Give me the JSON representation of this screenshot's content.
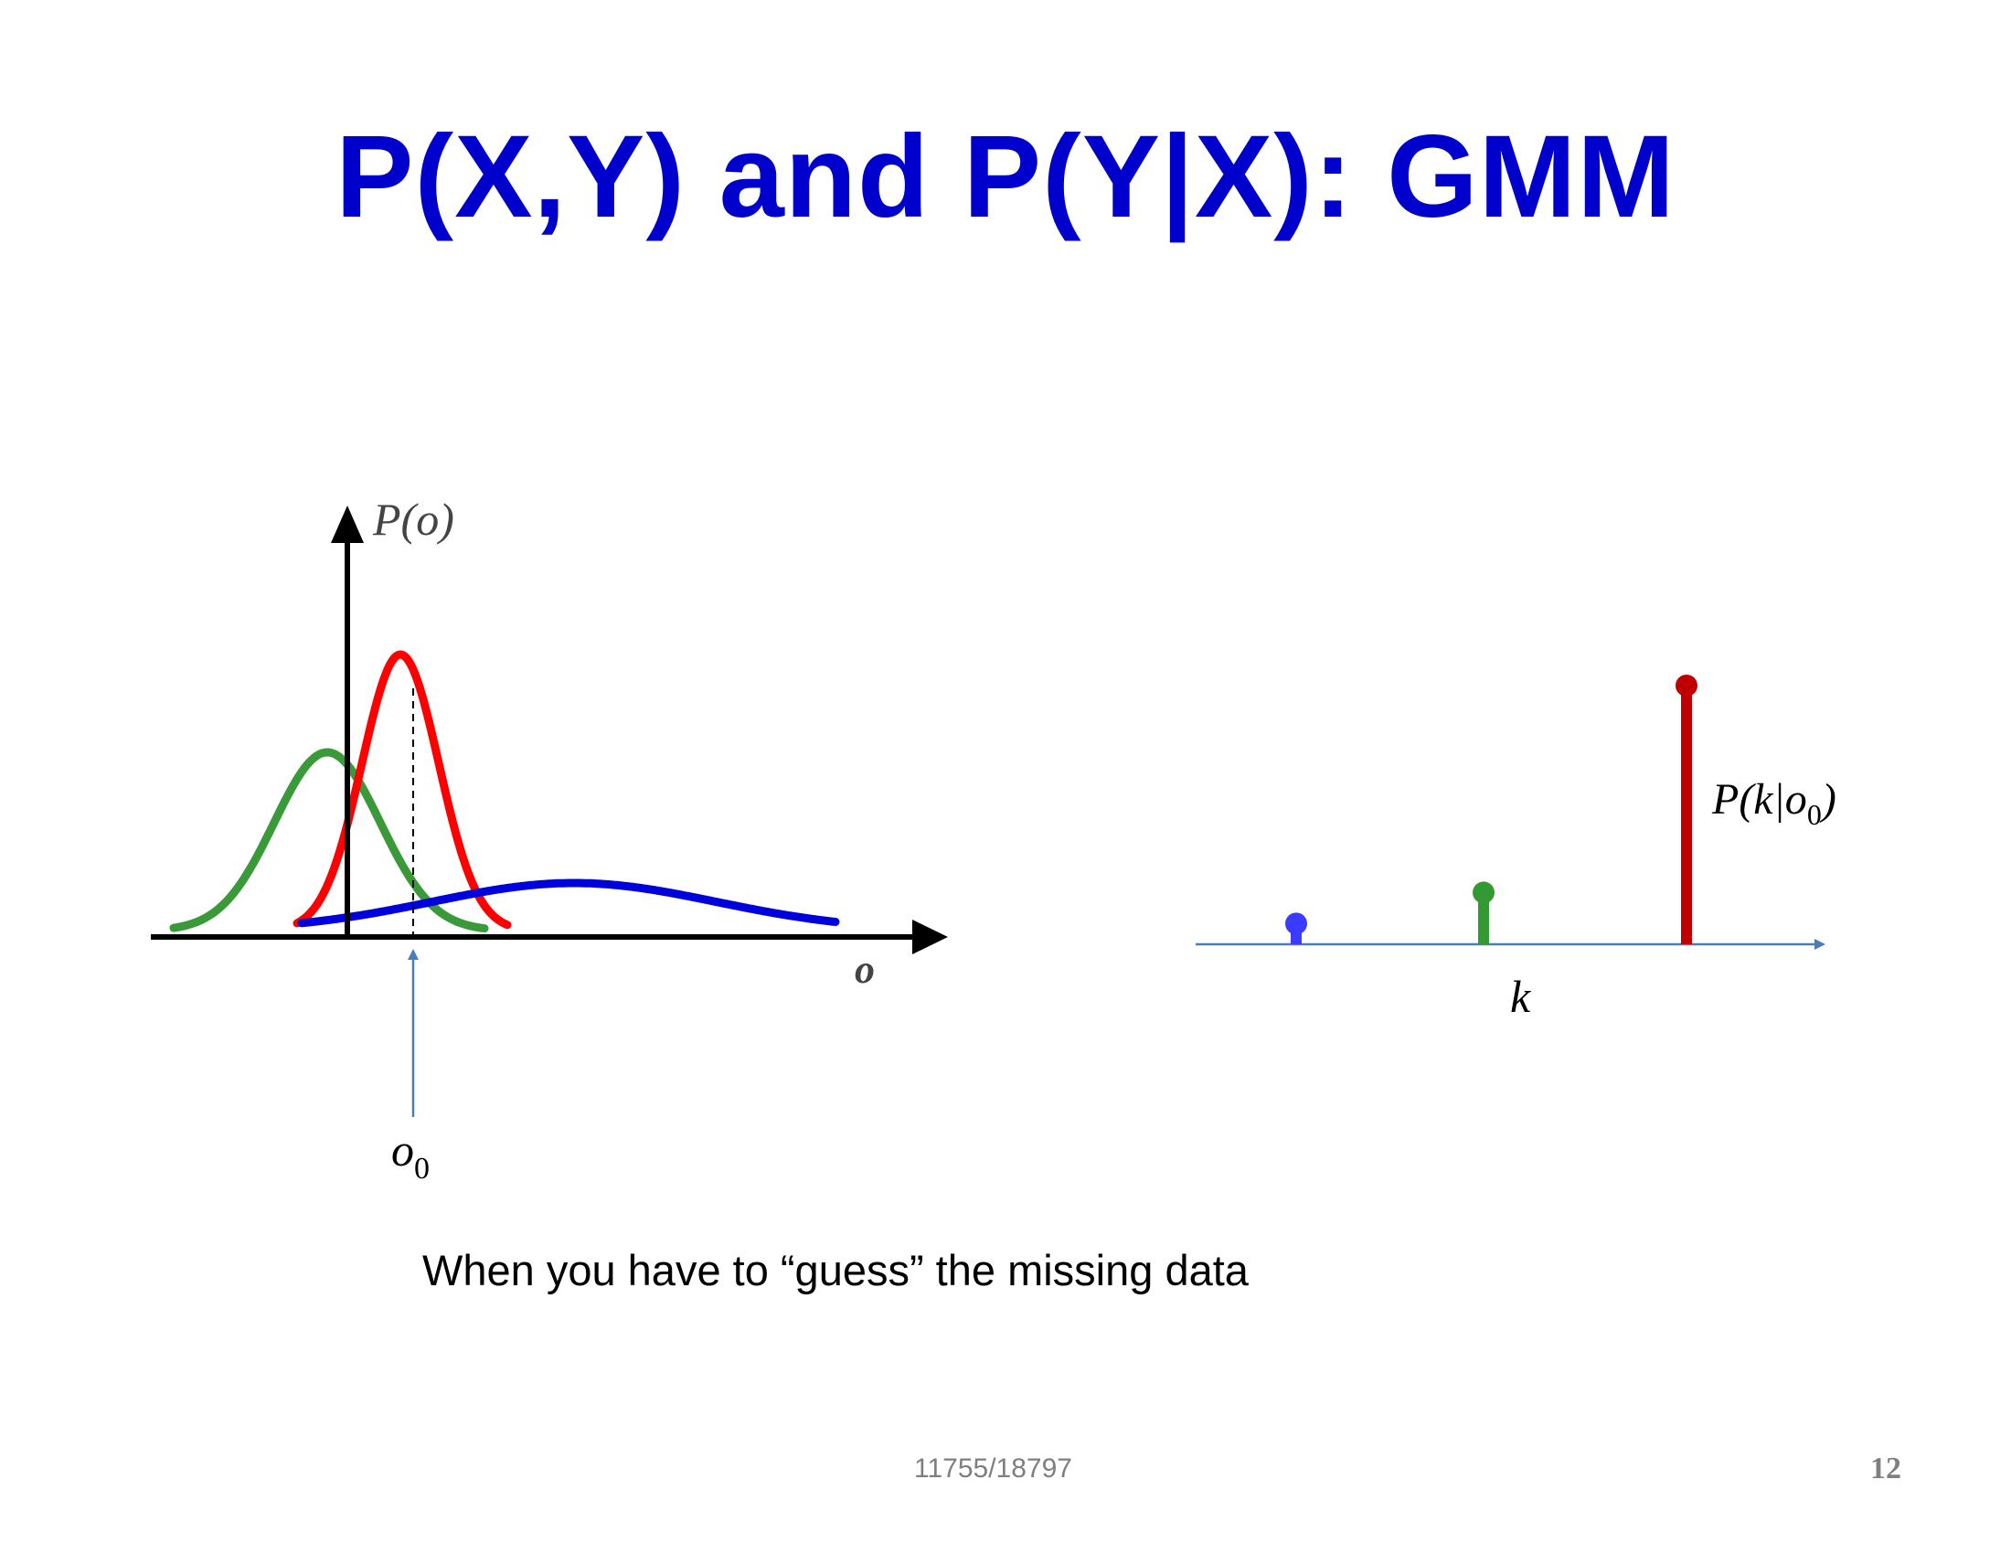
{
  "slide": {
    "title": "P(X,Y) and P(Y|X): GMM",
    "caption": "When you have to “guess” the missing data",
    "footer": "11755/18797",
    "page_number": "12"
  },
  "left_plot": {
    "y_axis_label": "P(o)",
    "x_axis_label": "o",
    "marker_label": "o",
    "marker_subscript": "0",
    "colors": {
      "green": "#3a9a3a",
      "red": "#ff0000",
      "blue": "#0000dd",
      "marker": "#4a7ebb"
    }
  },
  "right_plot": {
    "prob_label_prefix": "P(k|o",
    "prob_label_subscript": "0",
    "prob_label_suffix": ")",
    "x_axis_label": "k",
    "stems": [
      {
        "name": "blue",
        "color": "#3b3bff",
        "value": 0.08
      },
      {
        "name": "green",
        "color": "#339933",
        "value": 0.2
      },
      {
        "name": "red",
        "color": "#c00000",
        "value": 1.0
      }
    ],
    "axis_color": "#4a7ebb"
  }
}
